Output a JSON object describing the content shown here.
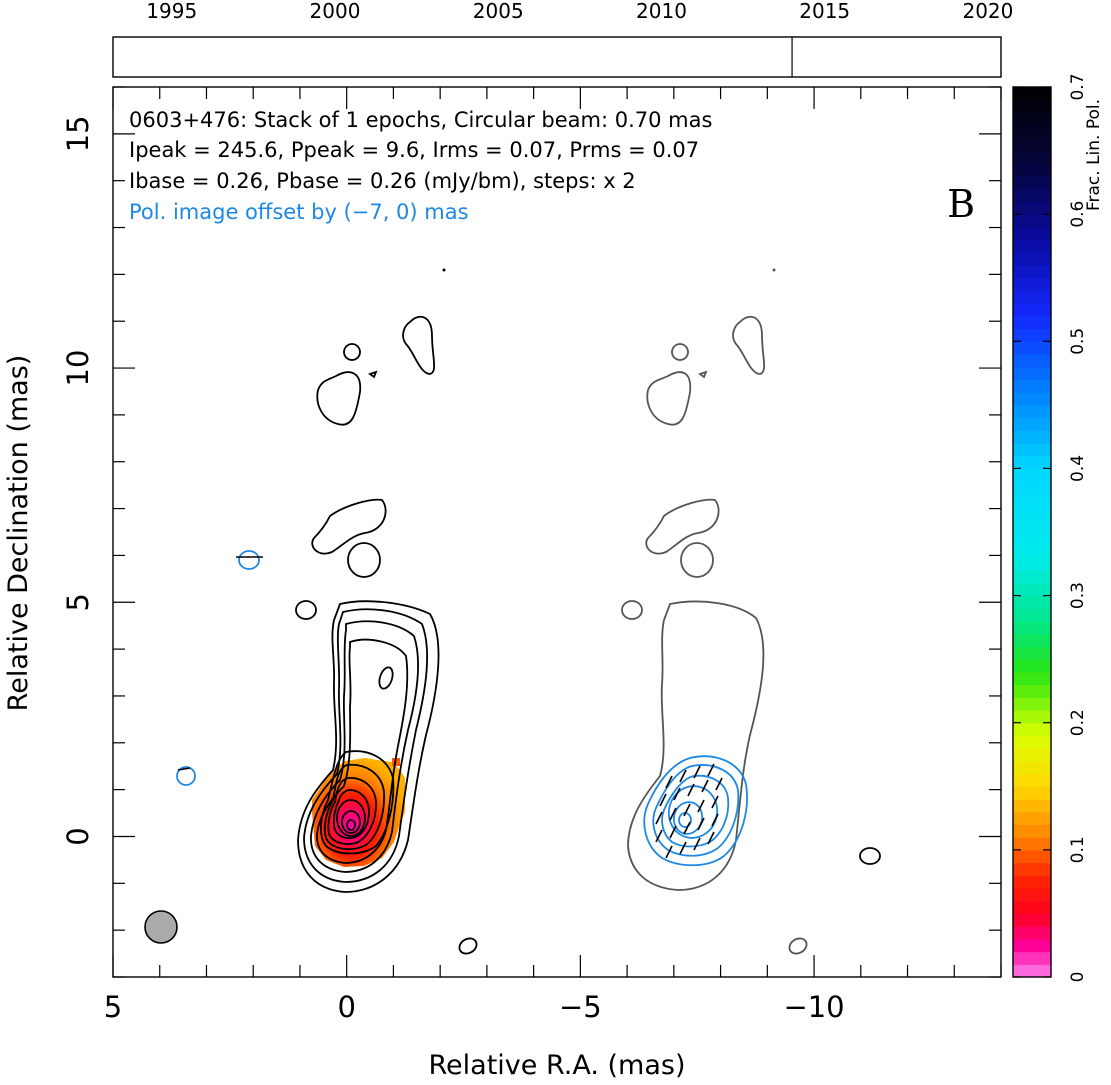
{
  "chart_data": {
    "type": "contour",
    "source": "0603+476",
    "annotations": {
      "line1": "0603+476: Stack of 1 epochs, Circular beam: 0.70 mas",
      "line2": "Ipeak = 245.6, Ppeak = 9.6, Irms = 0.07, Prms = 0.07",
      "line3": "Ibase = 0.26, Pbase = 0.26 (mJy/bm), steps: x 2",
      "line4": "Pol. image offset by (−7, 0) mas",
      "panel_letter": "B"
    },
    "epochs": 1,
    "beam_mas": 0.7,
    "Ipeak_mJy_per_beam": 245.6,
    "Ppeak_mJy_per_beam": 9.6,
    "Irms_mJy_per_beam": 0.07,
    "Prms_mJy_per_beam": 0.07,
    "Ibase_mJy_per_beam": 0.26,
    "Pbase_mJy_per_beam": 0.26,
    "contour_step_factor": 2,
    "pol_offset_mas": [
      -7,
      0
    ],
    "xlabel": "Relative R.A. (mas)",
    "ylabel": "Relative Declination (mas)",
    "xlim": [
      5,
      -14
    ],
    "ylim": [
      -3,
      16
    ],
    "xticks": [
      5,
      0,
      -5,
      -10
    ],
    "xtick_labels": [
      "5",
      "0",
      "−5",
      "−10"
    ],
    "yticks": [
      0,
      5,
      10,
      15
    ],
    "ytick_labels": [
      "0",
      "5",
      "10",
      "15"
    ],
    "timeline": {
      "range": [
        1993.2,
        2020.4
      ],
      "tick_years": [
        1995,
        2000,
        2005,
        2010,
        2015,
        2020
      ],
      "tick_labels": [
        "1995",
        "2000",
        "2005",
        "2010",
        "2015",
        "2020"
      ],
      "epoch_years": [
        2014.0
      ]
    },
    "colorbar": {
      "label": "Frac. Lin. Pol.",
      "range": [
        0,
        0.7
      ],
      "ticks": [
        0,
        0.1,
        0.2,
        0.3,
        0.4,
        0.5,
        0.6,
        0.7
      ],
      "tick_labels": [
        "0",
        "0.1",
        "0.2",
        "0.3",
        "0.4",
        "0.5",
        "0.6",
        "0.7"
      ]
    },
    "colors": {
      "intensity_contours": "#000000",
      "offset_intensity_contours": "#555555",
      "polarization_contours": "#1e88e5",
      "annotation_blue": "#1e88e5",
      "beam": "#aaaaaa"
    }
  }
}
